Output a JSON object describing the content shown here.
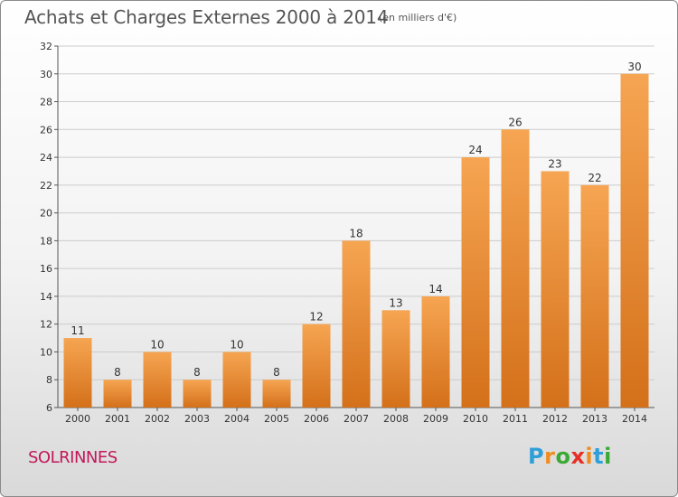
{
  "header": {
    "title": "Achats et Charges Externes 2000 à 2014",
    "subtitle": "(en milliers d'€)"
  },
  "footer": {
    "commune": "SOLRINNES",
    "logo_letters": [
      "P",
      "r",
      "o",
      "x",
      "i",
      "t",
      "i"
    ],
    "logo_colors": [
      "#2e9fd9",
      "#f08c1e",
      "#3aaa35",
      "#e63027",
      "#f08c1e",
      "#2e9fd9",
      "#3aaa35"
    ]
  },
  "colors": {
    "bar_light": "#f6a552",
    "bar_dark": "#d4701a",
    "grid": "#cccccc"
  },
  "chart_data": {
    "type": "bar",
    "title": "Achats et Charges Externes 2000 à 2014",
    "subtitle": "(en milliers d'€)",
    "xlabel": "",
    "ylabel": "",
    "categories": [
      "2000",
      "2001",
      "2002",
      "2003",
      "2004",
      "2005",
      "2006",
      "2007",
      "2008",
      "2009",
      "2010",
      "2011",
      "2012",
      "2013",
      "2014"
    ],
    "values": [
      11,
      8,
      10,
      8,
      10,
      8,
      12,
      18,
      13,
      14,
      24,
      26,
      23,
      22,
      30
    ],
    "ylim": [
      6,
      32
    ],
    "yticks": [
      6,
      8,
      10,
      12,
      14,
      16,
      18,
      20,
      22,
      24,
      26,
      28,
      30,
      32
    ],
    "grid": true,
    "legend": "none"
  }
}
